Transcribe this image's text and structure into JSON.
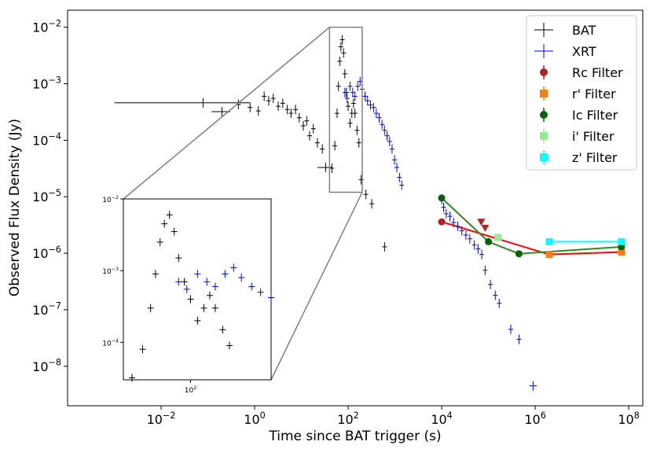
{
  "chart_data": {
    "type": "scatter",
    "xlabel": "Time since BAT trigger (s)",
    "ylabel": "Observed Flux Density (Jy)",
    "xscale": "log",
    "yscale": "log",
    "xlim": [
      0.0001,
      200000000
    ],
    "ylim": [
      2e-09,
      0.02
    ],
    "grid": false,
    "legend_position": "top-right",
    "x_ticks": [
      {
        "value": 0.01,
        "label": "10",
        "exp": "−2"
      },
      {
        "value": 1,
        "label": "10",
        "exp": "0"
      },
      {
        "value": 100,
        "label": "10",
        "exp": "2"
      },
      {
        "value": 10000,
        "label": "10",
        "exp": "4"
      },
      {
        "value": 1000000,
        "label": "10",
        "exp": "6"
      },
      {
        "value": 100000000,
        "label": "10",
        "exp": "8"
      }
    ],
    "y_ticks": [
      {
        "value": 1e-08,
        "label": "10",
        "exp": "−8"
      },
      {
        "value": 1e-07,
        "label": "10",
        "exp": "−7"
      },
      {
        "value": 1e-06,
        "label": "10",
        "exp": "−6"
      },
      {
        "value": 1e-05,
        "label": "10",
        "exp": "−5"
      },
      {
        "value": 0.0001,
        "label": "10",
        "exp": "−4"
      },
      {
        "value": 0.001,
        "label": "10",
        "exp": "−3"
      },
      {
        "value": 0.01,
        "label": "10",
        "exp": "−2"
      }
    ],
    "series": [
      {
        "name": "BAT",
        "color": "#000000",
        "marker": "errorbar",
        "points": [
          {
            "x": 0.079,
            "y": 0.00046,
            "xlo": 0.001,
            "xhi": 0.8
          },
          {
            "x": 0.2,
            "y": 0.00032,
            "xlo": 0.12,
            "xhi": 0.3
          },
          {
            "x": 0.45,
            "y": 0.00043
          },
          {
            "x": 0.8,
            "y": 0.00038
          },
          {
            "x": 1.2,
            "y": 0.00033
          },
          {
            "x": 1.6,
            "y": 0.0006
          },
          {
            "x": 2.0,
            "y": 0.0005
          },
          {
            "x": 2.5,
            "y": 0.00055
          },
          {
            "x": 3.2,
            "y": 0.0004
          },
          {
            "x": 4.0,
            "y": 0.00045
          },
          {
            "x": 5.0,
            "y": 0.00035
          },
          {
            "x": 6.0,
            "y": 0.0003
          },
          {
            "x": 7.5,
            "y": 0.00035
          },
          {
            "x": 9.0,
            "y": 0.00025
          },
          {
            "x": 11,
            "y": 0.00018
          },
          {
            "x": 13,
            "y": 0.00022
          },
          {
            "x": 15,
            "y": 0.00012
          },
          {
            "x": 18,
            "y": 0.00016
          },
          {
            "x": 22,
            "y": 9e-05
          },
          {
            "x": 28,
            "y": 7e-05
          },
          {
            "x": 33,
            "y": 3.3e-05,
            "xlo": 22,
            "xhi": 45
          },
          {
            "x": 45,
            "y": 3.2e-05,
            "xlo": 40,
            "xhi": 50
          },
          {
            "x": 52,
            "y": 8e-05
          },
          {
            "x": 58,
            "y": 0.0003
          },
          {
            "x": 62,
            "y": 0.0009
          },
          {
            "x": 66,
            "y": 0.0025
          },
          {
            "x": 70,
            "y": 0.0045
          },
          {
            "x": 75,
            "y": 0.006
          },
          {
            "x": 80,
            "y": 0.0035
          },
          {
            "x": 85,
            "y": 0.0015
          },
          {
            "x": 92,
            "y": 0.0007
          },
          {
            "x": 100,
            "y": 0.0004
          },
          {
            "x": 110,
            "y": 0.0002
          },
          {
            "x": 120,
            "y": 0.0003
          },
          {
            "x": 130,
            "y": 0.00045
          },
          {
            "x": 140,
            "y": 0.0003
          },
          {
            "x": 155,
            "y": 0.00015
          },
          {
            "x": 170,
            "y": 9e-05
          },
          {
            "x": 190,
            "y": 2e-05
          },
          {
            "x": 240,
            "y": 1.1e-05
          },
          {
            "x": 320,
            "y": 7.5e-06
          },
          {
            "x": 600,
            "y": 1.3e-06
          }
        ]
      },
      {
        "name": "XRT",
        "color": "#0000ff",
        "marker": "errorbar",
        "points": [
          {
            "x": 85,
            "y": 0.0007
          },
          {
            "x": 95,
            "y": 0.00055
          },
          {
            "x": 110,
            "y": 0.0009
          },
          {
            "x": 125,
            "y": 0.0007
          },
          {
            "x": 140,
            "y": 0.0006
          },
          {
            "x": 160,
            "y": 0.0009
          },
          {
            "x": 180,
            "y": 0.0011
          },
          {
            "x": 200,
            "y": 0.0008
          },
          {
            "x": 230,
            "y": 0.0006
          },
          {
            "x": 260,
            "y": 0.0005
          },
          {
            "x": 300,
            "y": 0.00042
          },
          {
            "x": 350,
            "y": 0.00038
          },
          {
            "x": 400,
            "y": 0.0003
          },
          {
            "x": 460,
            "y": 0.00025
          },
          {
            "x": 530,
            "y": 0.00019
          },
          {
            "x": 600,
            "y": 0.00015
          },
          {
            "x": 680,
            "y": 0.00012
          },
          {
            "x": 770,
            "y": 9.5e-05
          },
          {
            "x": 870,
            "y": 7e-05
          },
          {
            "x": 980,
            "y": 4.5e-05
          },
          {
            "x": 1100,
            "y": 3.3e-05
          },
          {
            "x": 1250,
            "y": 2.2e-05
          },
          {
            "x": 1400,
            "y": 1.6e-05
          },
          {
            "x": 10000,
            "y": 9e-06
          },
          {
            "x": 11000,
            "y": 6.5e-06
          },
          {
            "x": 12500,
            "y": 5e-06
          },
          {
            "x": 15000,
            "y": 4.5e-06
          },
          {
            "x": 18000,
            "y": 3.5e-06
          },
          {
            "x": 22000,
            "y": 3e-06
          },
          {
            "x": 27000,
            "y": 2.5e-06
          },
          {
            "x": 33000,
            "y": 2.1e-06
          },
          {
            "x": 40000,
            "y": 1.8e-06
          },
          {
            "x": 50000,
            "y": 1.4e-06
          },
          {
            "x": 60000,
            "y": 1.2e-06
          },
          {
            "x": 72000,
            "y": 9.5e-07
          },
          {
            "x": 85000,
            "y": 5e-07
          },
          {
            "x": 110000,
            "y": 2.8e-07
          },
          {
            "x": 140000,
            "y": 1.8e-07
          },
          {
            "x": 170000,
            "y": 1.3e-07
          },
          {
            "x": 300000,
            "y": 4.5e-08
          },
          {
            "x": 450000,
            "y": 3e-08
          },
          {
            "x": 900000,
            "y": 4.5e-09,
            "xlo": 750000,
            "xhi": 1080000
          }
        ]
      },
      {
        "name": "Rc Filter",
        "color": "#b22222",
        "marker": "circle",
        "line_color": "#ff0000",
        "points": [
          {
            "x": 10000,
            "y": 3.6e-06
          },
          {
            "x": 2000000,
            "y": 9.5e-07
          }
        ],
        "upper_limits": [
          {
            "x": 70000,
            "y": 3.6e-06
          },
          {
            "x": 85000,
            "y": 2.8e-06
          }
        ]
      },
      {
        "name": "r' Filter",
        "color": "#ff7f0e",
        "marker": "square",
        "line_color": "#ff0000",
        "points": [
          {
            "x": 2000000,
            "y": 9.5e-07
          },
          {
            "x": 70000000,
            "y": 1.05e-06
          }
        ]
      },
      {
        "name": "Ic Filter",
        "color": "#006400",
        "marker": "circle",
        "line_color": "#2e8b22",
        "points": [
          {
            "x": 10000,
            "y": 9.5e-06
          },
          {
            "x": 100000,
            "y": 1.6e-06
          },
          {
            "x": 450000,
            "y": 9.8e-07
          },
          {
            "x": 70000000,
            "y": 1.3e-06
          }
        ]
      },
      {
        "name": "i' Filter",
        "color": "#90ee90",
        "marker": "square",
        "points": [
          {
            "x": 160000,
            "y": 1.9e-06
          }
        ]
      },
      {
        "name": "z' Filter",
        "color": "#00ffff",
        "marker": "square",
        "line_color": "#00ffff",
        "points": [
          {
            "x": 2000000,
            "y": 1.6e-06
          },
          {
            "x": 70000000,
            "y": 1.6e-06
          }
        ]
      }
    ],
    "inset": {
      "xscale": "log",
      "yscale": "log",
      "xlim": [
        40,
        300
      ],
      "ylim": [
        3e-05,
        0.01
      ],
      "x_ticks": [
        {
          "value": 100,
          "label": "10",
          "exp": "2"
        }
      ],
      "y_ticks": [
        {
          "value": 0.0001,
          "label": "10",
          "exp": "−4"
        },
        {
          "value": 0.001,
          "label": "10",
          "exp": "−3"
        },
        {
          "value": 0.01,
          "label": "10",
          "exp": "−2"
        }
      ],
      "zoom_box": {
        "x": [
          40,
          200
        ],
        "y": [
          1.2e-05,
          0.01
        ]
      }
    }
  }
}
